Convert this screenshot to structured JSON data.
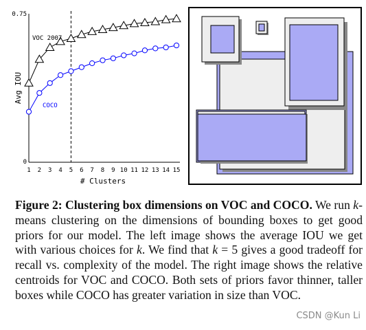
{
  "figure": {
    "label": "Figure 2:",
    "title": "Clustering box dimensions on VOC and COCO.",
    "body": "We run k-means clustering on the dimensions of bounding boxes to get good priors for our model. The left image shows the average IOU we get with various choices for k. We find that k = 5 gives a good tradeoff for recall vs. complexity of the model. The right image shows the relative centroids for VOC and COCO. Both sets of priors favor thinner, taller boxes while COCO has greater variation in size than VOC."
  },
  "watermark": "CSDN @Kun Li",
  "chart_data": {
    "type": "line",
    "xlabel": "# Clusters",
    "ylabel": "Avg IOU",
    "x": [
      1,
      2,
      3,
      4,
      5,
      6,
      7,
      8,
      9,
      10,
      11,
      12,
      13,
      14,
      15
    ],
    "xlim": [
      1,
      15
    ],
    "ylim": [
      0,
      0.75
    ],
    "ytick_labels": [
      "0",
      "0.75"
    ],
    "marker_line_x": 5,
    "grid": false,
    "series": [
      {
        "name": "VOC 2007",
        "marker": "triangle",
        "color": "#000000",
        "values": [
          0.4,
          0.52,
          0.58,
          0.61,
          0.625,
          0.645,
          0.66,
          0.67,
          0.68,
          0.69,
          0.7,
          0.705,
          0.71,
          0.72,
          0.725
        ]
      },
      {
        "name": "COCO",
        "marker": "circle",
        "color": "#0000ff",
        "values": [
          0.255,
          0.35,
          0.4,
          0.44,
          0.46,
          0.48,
          0.5,
          0.515,
          0.525,
          0.54,
          0.55,
          0.565,
          0.575,
          0.58,
          0.59
        ]
      }
    ]
  }
}
